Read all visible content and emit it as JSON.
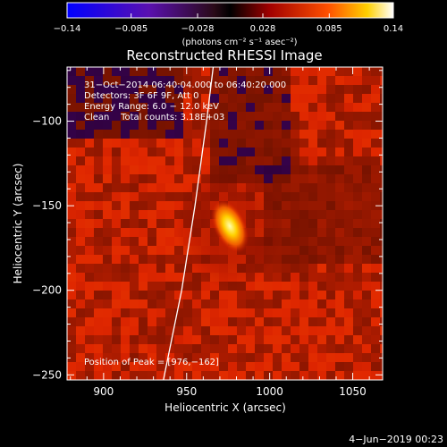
{
  "chart_data": {
    "type": "heatmap",
    "title": "Reconstructed RHESSI Image",
    "xlabel": "Heliocentric X (arcsec)",
    "ylabel": "Heliocentric Y (arcsec)",
    "xlim": [
      878,
      1068
    ],
    "ylim": [
      -253,
      -68
    ],
    "x_ticks": [
      {
        "value": 900,
        "label": "900"
      },
      {
        "value": 950,
        "label": "950"
      },
      {
        "value": 1000,
        "label": "1000"
      },
      {
        "value": 1050,
        "label": "1050"
      }
    ],
    "y_ticks": [
      {
        "value": -100,
        "label": "−100"
      },
      {
        "value": -150,
        "label": "−150"
      },
      {
        "value": -200,
        "label": "−200"
      },
      {
        "value": -250,
        "label": "−250"
      }
    ],
    "colorbar": {
      "range": [
        -0.14,
        0.14
      ],
      "colormap": "blue-purple-red-yellow-white",
      "ticks": [
        {
          "value": -0.14,
          "label": "−0.14"
        },
        {
          "value": -0.085,
          "label": "−0.085"
        },
        {
          "value": -0.028,
          "label": "−0.028"
        },
        {
          "value": 0.028,
          "label": "0.028"
        },
        {
          "value": 0.085,
          "label": "0.085"
        },
        {
          "value": 0.14,
          "label": "0.14"
        }
      ],
      "unit_label": "(photons cm⁻² s⁻¹ asec⁻²)"
    },
    "annotations": [
      "31−Oct−2014 06:40:04.000 to 06:40:20.000",
      "Detectors: 3F 6F 9F, Att 0",
      "Energy Range: 6.0 − 12.0 keV",
      "Clean    Total counts: 3.18E+03"
    ],
    "peak_label": "Position of Peak = [976,−162]",
    "peak": {
      "x": 976,
      "y": -162
    },
    "limb_curve": [
      [
        936,
        -253
      ],
      [
        947,
        -200
      ],
      [
        955,
        -150
      ],
      [
        962,
        -100
      ],
      [
        966,
        -68
      ]
    ],
    "footer_date": "4−Jun−2019 00:23"
  }
}
